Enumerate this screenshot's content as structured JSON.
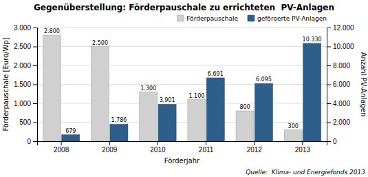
{
  "chart_data": {
    "type": "bar",
    "title": "Gegenüberstellung: Förderpauschale zu errichteten  PV-Anlagen",
    "xlabel": "Förderjahr",
    "ylabel": "Förderpauschale [Euro/Wp]",
    "y2label": "Anzahl PV-Anlagen",
    "source": "Quelle:  Klima- und Energiefonds 2013",
    "categories": [
      "2008",
      "2009",
      "2010",
      "2011",
      "2012",
      "2013"
    ],
    "series": [
      {
        "name": "Förderpauschale",
        "color": "#d0d0d0",
        "values": [
          2800,
          2500,
          1300,
          1100,
          800,
          300
        ],
        "value_labels": [
          "2.800",
          "2.500",
          "1.300",
          "1.100",
          "800",
          "300"
        ]
      },
      {
        "name": "geföroerte PV-Anlagen",
        "color": "#2e5f8a",
        "axis": "y2",
        "values": [
          679,
          1786,
          3901,
          6691,
          6095,
          10330
        ],
        "value_labels": [
          "679",
          "1.786",
          "3.901",
          "6.691",
          "6.095",
          "10.330"
        ]
      }
    ],
    "ylim": [
      0,
      3000
    ],
    "yticks": [
      0,
      500,
      {
        "value": 1000,
        "label": "1.000"
      },
      {
        "value": 1500,
        "label": "1.500"
      },
      {
        "value": 2000,
        "label": "2.000"
      },
      {
        "value": 2500,
        "label": "2.500"
      },
      {
        "value": 3000,
        "label": "3.000"
      }
    ],
    "y2lim": [
      0,
      12000
    ],
    "y2ticks": [
      0,
      {
        "value": 2000,
        "label": "2.000"
      },
      {
        "value": 4000,
        "label": "4.000"
      },
      {
        "value": 6000,
        "label": "6.000"
      },
      {
        "value": 8000,
        "label": "8.000"
      },
      {
        "value": 10000,
        "label": "10.000"
      },
      {
        "value": 12000,
        "label": "12.000"
      }
    ],
    "grid": true,
    "legend": "upper right",
    "data_labels": true
  }
}
